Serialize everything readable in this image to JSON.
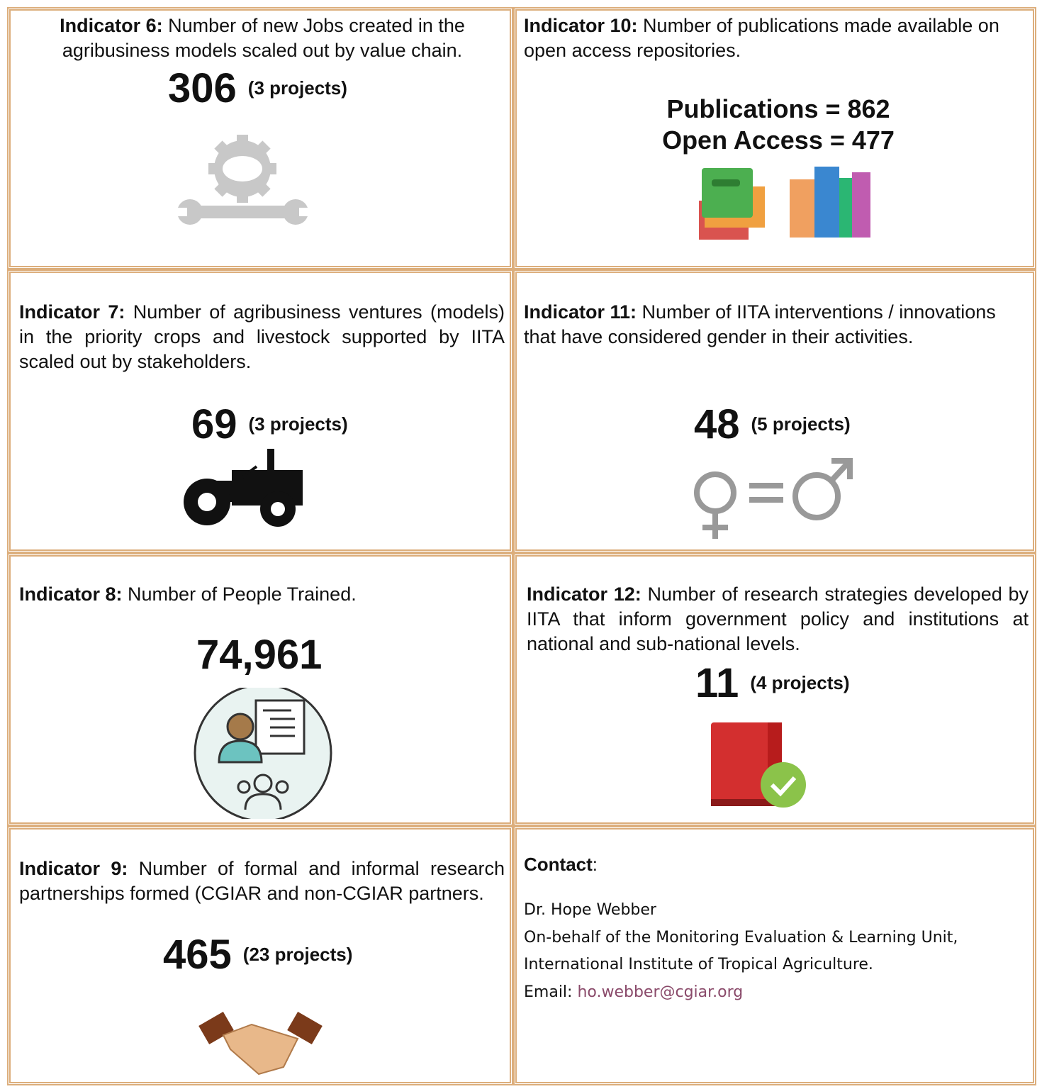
{
  "ind6": {
    "label": "Indicator 6:",
    "text": " Number of new Jobs created in the agribusiness models scaled out by value chain.",
    "value": "306",
    "projects": "(3 projects)",
    "icon": "gear-wrench-icon"
  },
  "ind10": {
    "label": "Indicator 10:",
    "text": " Number of publications made available on open access repositories.",
    "line1": "Publications = 862",
    "line2": "Open Access = 477",
    "icon": "books-icon"
  },
  "ind7": {
    "label": "Indicator 7:",
    "text": " Number of agribusiness ventures (models) in the priority crops and livestock supported by IITA scaled out by stakeholders.",
    "value": "69",
    "projects": "(3 projects)",
    "icon": "tractor-icon"
  },
  "ind11": {
    "label": "Indicator 11:",
    "text": " Number of IITA interventions / innovations that have considered gender in their activities.",
    "value": "48",
    "projects": "(5 projects)",
    "icon": "gender-equality-icon"
  },
  "ind8": {
    "label": "Indicator 8:",
    "text": " Number of People Trained.",
    "value": "74,961",
    "icon": "training-icon"
  },
  "ind12": {
    "label": "Indicator 12:",
    "text": " Number of research strategies developed by IITA that inform government policy and institutions at national and sub-national levels.",
    "value": "11",
    "projects": "(4 projects)",
    "icon": "book-check-icon"
  },
  "ind9": {
    "label": "Indicator 9:",
    "text": " Number of formal and informal research partnerships formed (CGIAR and non-CGIAR partners.",
    "value": "465",
    "projects": "(23 projects)",
    "icon": "handshake-icon"
  },
  "contact": {
    "heading": "Contact",
    "colon": ":",
    "name": "Dr. Hope Webber",
    "line1": "On-behalf of the Monitoring Evaluation & Learning Unit,",
    "line2": "International Institute of Tropical Agriculture.",
    "email_label": "Email: ",
    "email": "ho.webber@cgiar.org"
  },
  "colors": {
    "border": "#dcae7c",
    "link": "#8a4a6a"
  }
}
